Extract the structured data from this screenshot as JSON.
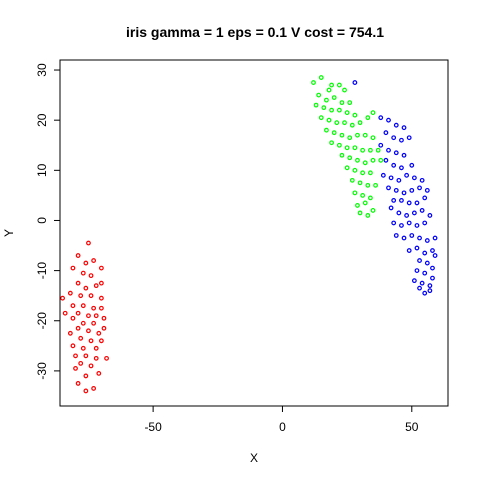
{
  "chart_data": {
    "type": "scatter",
    "title": "iris gamma = 1 eps = 0.1 V cost = 754.1",
    "xlabel": "X",
    "ylabel": "Y",
    "xlim": [
      -86,
      64
    ],
    "ylim": [
      -37,
      32
    ],
    "x_ticks": [
      -50,
      0,
      50
    ],
    "y_ticks": [
      -30,
      -20,
      -10,
      0,
      10,
      20,
      30
    ],
    "grid": false,
    "series": [
      {
        "color": "#ff0000",
        "points": [
          [
            -75,
            -4.5
          ],
          [
            -79,
            -7
          ],
          [
            -76,
            -8.5
          ],
          [
            -73,
            -8
          ],
          [
            -70,
            -9.5
          ],
          [
            -81,
            -9.5
          ],
          [
            -77,
            -10.5
          ],
          [
            -74,
            -11
          ],
          [
            -70,
            -12.5
          ],
          [
            -79,
            -12.5
          ],
          [
            -76,
            -13.5
          ],
          [
            -72,
            -13
          ],
          [
            -82,
            -14.5
          ],
          [
            -78,
            -15
          ],
          [
            -74,
            -15
          ],
          [
            -70,
            -15.5
          ],
          [
            -85,
            -15.5
          ],
          [
            -81,
            -17
          ],
          [
            -77,
            -17
          ],
          [
            -73,
            -17.5
          ],
          [
            -70,
            -17.5
          ],
          [
            -84,
            -18.5
          ],
          [
            -79,
            -18.5
          ],
          [
            -75,
            -19
          ],
          [
            -72,
            -19
          ],
          [
            -69,
            -19.5
          ],
          [
            -81,
            -19.5
          ],
          [
            -77,
            -20.5
          ],
          [
            -73,
            -20.5
          ],
          [
            -69,
            -21.5
          ],
          [
            -79,
            -21.5
          ],
          [
            -75,
            -22
          ],
          [
            -71,
            -22.5
          ],
          [
            -82,
            -22.5
          ],
          [
            -78,
            -23.5
          ],
          [
            -74,
            -24
          ],
          [
            -70,
            -24
          ],
          [
            -81,
            -25
          ],
          [
            -77,
            -25.5
          ],
          [
            -72,
            -25.5
          ],
          [
            -80,
            -27
          ],
          [
            -76,
            -27
          ],
          [
            -72,
            -27.5
          ],
          [
            -68,
            -27.5
          ],
          [
            -78,
            -28.5
          ],
          [
            -74,
            -29
          ],
          [
            -80,
            -29.5
          ],
          [
            -71,
            -30.5
          ],
          [
            -76,
            -31
          ],
          [
            -79,
            -32.5
          ],
          [
            -73,
            -33.5
          ],
          [
            -76,
            -34
          ]
        ]
      },
      {
        "color": "#00ff00",
        "points": [
          [
            12,
            27.5
          ],
          [
            15,
            28.5
          ],
          [
            19,
            27
          ],
          [
            22,
            27
          ],
          [
            18,
            26
          ],
          [
            24,
            26
          ],
          [
            14,
            25
          ],
          [
            17,
            24
          ],
          [
            20,
            24.5
          ],
          [
            23,
            23.5
          ],
          [
            26,
            23.5
          ],
          [
            13,
            23
          ],
          [
            16,
            22.5
          ],
          [
            19,
            22
          ],
          [
            22,
            22
          ],
          [
            25,
            21.5
          ],
          [
            28,
            21
          ],
          [
            15,
            20.5
          ],
          [
            18,
            20
          ],
          [
            21,
            19.5
          ],
          [
            24,
            19.5
          ],
          [
            27,
            19
          ],
          [
            30,
            19.5
          ],
          [
            33,
            20.5
          ],
          [
            35,
            21.5
          ],
          [
            17,
            18
          ],
          [
            20,
            17.5
          ],
          [
            23,
            17
          ],
          [
            26,
            16.5
          ],
          [
            29,
            17
          ],
          [
            32,
            17
          ],
          [
            35,
            16.5
          ],
          [
            19,
            15.5
          ],
          [
            22,
            15
          ],
          [
            25,
            14.5
          ],
          [
            28,
            14.5
          ],
          [
            31,
            14
          ],
          [
            34,
            14
          ],
          [
            37,
            14
          ],
          [
            23,
            13
          ],
          [
            26,
            12.5
          ],
          [
            29,
            12
          ],
          [
            32,
            11.5
          ],
          [
            35,
            12
          ],
          [
            38,
            12
          ],
          [
            25,
            10.5
          ],
          [
            28,
            10
          ],
          [
            31,
            9.5
          ],
          [
            34,
            9.5
          ],
          [
            27,
            8
          ],
          [
            30,
            7.5
          ],
          [
            33,
            7
          ],
          [
            36,
            7
          ],
          [
            28,
            5.5
          ],
          [
            31,
            5
          ],
          [
            34,
            4.5
          ],
          [
            29,
            3
          ],
          [
            32,
            3.5
          ],
          [
            35,
            2
          ],
          [
            30,
            1.5
          ],
          [
            33,
            1
          ]
        ]
      },
      {
        "color": "#0000ff",
        "points": [
          [
            28,
            27.5
          ],
          [
            38,
            20.5
          ],
          [
            41,
            20
          ],
          [
            44,
            19
          ],
          [
            47,
            18.5
          ],
          [
            40,
            17.5
          ],
          [
            43,
            16.5
          ],
          [
            46,
            16
          ],
          [
            49,
            16.5
          ],
          [
            38,
            15
          ],
          [
            41,
            14
          ],
          [
            44,
            13.5
          ],
          [
            47,
            13
          ],
          [
            40,
            12
          ],
          [
            43,
            11
          ],
          [
            46,
            10.5
          ],
          [
            50,
            11
          ],
          [
            39,
            9
          ],
          [
            42,
            8.5
          ],
          [
            45,
            8
          ],
          [
            48,
            9
          ],
          [
            51,
            8.5
          ],
          [
            54,
            8
          ],
          [
            41,
            6.5
          ],
          [
            44,
            6
          ],
          [
            47,
            5.5
          ],
          [
            50,
            6
          ],
          [
            53,
            6.5
          ],
          [
            56,
            6
          ],
          [
            43,
            4
          ],
          [
            46,
            4
          ],
          [
            49,
            3.5
          ],
          [
            52,
            3.5
          ],
          [
            55,
            4.5
          ],
          [
            42,
            2.5
          ],
          [
            45,
            1.5
          ],
          [
            48,
            1
          ],
          [
            51,
            1.5
          ],
          [
            54,
            2
          ],
          [
            57,
            1
          ],
          [
            43,
            -0.5
          ],
          [
            46,
            -1
          ],
          [
            49,
            -0.5
          ],
          [
            52,
            -1
          ],
          [
            55,
            -0.5
          ],
          [
            44,
            -3
          ],
          [
            47,
            -3.5
          ],
          [
            50,
            -3
          ],
          [
            53,
            -3.5
          ],
          [
            56,
            -4
          ],
          [
            59,
            -3.5
          ],
          [
            49,
            -6
          ],
          [
            52,
            -5.5
          ],
          [
            55,
            -6.5
          ],
          [
            58,
            -6
          ],
          [
            53,
            -8
          ],
          [
            56,
            -8.5
          ],
          [
            59,
            -7
          ],
          [
            52,
            -10
          ],
          [
            55,
            -10.5
          ],
          [
            58,
            -9.5
          ],
          [
            51,
            -12
          ],
          [
            54,
            -12.5
          ],
          [
            57,
            -13
          ],
          [
            58,
            -11.5
          ],
          [
            53,
            -13.5
          ],
          [
            55,
            -14.5
          ],
          [
            57,
            -14
          ]
        ]
      }
    ]
  }
}
